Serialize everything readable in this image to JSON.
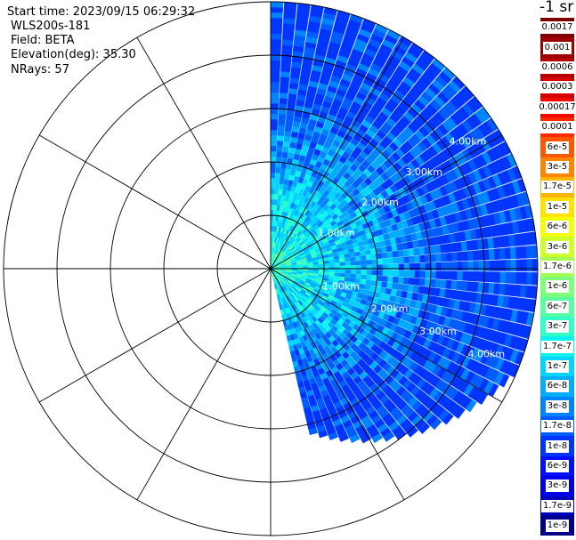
{
  "info": {
    "start_time": "Start time: 2023/09/15 06:29:32",
    "instrument": "WLS200s-181",
    "field": "Field: BETA",
    "elevation": "Elevation(deg): 35.30",
    "nrays": "NRays: 57"
  },
  "chart_data": {
    "type": "heatmap",
    "projection": "polar-ppi",
    "field": "BETA",
    "unit_label": "-1 sr",
    "range_rings_km": [
      1.0,
      2.0,
      3.0,
      4.0
    ],
    "range_ring_labels": [
      "1.00km",
      "2.00km",
      "3.00km",
      "4.00km"
    ],
    "max_range_km": 5.0,
    "spoke_angles_deg": [
      0,
      30,
      60,
      90,
      120,
      150,
      180,
      210,
      240,
      270,
      300,
      330
    ],
    "azimuth_start_deg": 0,
    "azimuth_end_deg": 167,
    "n_rays": 57,
    "ray_max_range_km": [
      5.0,
      5.0,
      5.0,
      5.0,
      5.0,
      5.0,
      5.0,
      5.0,
      5.0,
      5.0,
      5.0,
      5.0,
      5.0,
      5.0,
      5.0,
      5.0,
      5.0,
      5.0,
      5.0,
      5.0,
      5.0,
      5.0,
      5.0,
      5.0,
      5.0,
      5.0,
      5.0,
      5.0,
      5.0,
      5.0,
      5.0,
      5.0,
      5.0,
      5.0,
      5.0,
      5.0,
      5.0,
      5.0,
      5.0,
      4.9,
      4.8,
      4.7,
      4.6,
      4.5,
      4.4,
      4.3,
      4.2,
      4.1,
      4.0,
      3.9,
      3.8,
      3.7,
      3.6,
      3.5,
      3.4,
      3.3,
      3.2
    ],
    "colorbar": [
      {
        "label": "0.0017",
        "color": "#7f0000"
      },
      {
        "label": "0.001",
        "color": "#9c0000"
      },
      {
        "label": "0.0006",
        "color": "#b50000"
      },
      {
        "label": "0.0003",
        "color": "#d60000"
      },
      {
        "label": "0.00017",
        "color": "#f10800"
      },
      {
        "label": "0.0001",
        "color": "#ff2800"
      },
      {
        "label": "6e-5",
        "color": "#ff5600"
      },
      {
        "label": "3e-5",
        "color": "#ff8400"
      },
      {
        "label": "1.7e-5",
        "color": "#ffb600"
      },
      {
        "label": "1e-5",
        "color": "#ffe100"
      },
      {
        "label": "6e-6",
        "color": "#f2ff09"
      },
      {
        "label": "3e-6",
        "color": "#cfff2a"
      },
      {
        "label": "1.7e-6",
        "color": "#a4ff54"
      },
      {
        "label": "1e-6",
        "color": "#7cff7a"
      },
      {
        "label": "6e-7",
        "color": "#57ffa0"
      },
      {
        "label": "3e-7",
        "color": "#30ffc6"
      },
      {
        "label": "1.7e-7",
        "color": "#0cf3ee"
      },
      {
        "label": "1e-7",
        "color": "#00d4ff"
      },
      {
        "label": "6e-8",
        "color": "#00acff"
      },
      {
        "label": "3e-8",
        "color": "#0084ff"
      },
      {
        "label": "1.7e-8",
        "color": "#005cff"
      },
      {
        "label": "1e-8",
        "color": "#0034ff"
      },
      {
        "label": "6e-9",
        "color": "#0010ff"
      },
      {
        "label": "3e-9",
        "color": "#0000e4"
      },
      {
        "label": "1.7e-9",
        "color": "#0000b8"
      },
      {
        "label": "1e-9",
        "color": "#00008b"
      }
    ],
    "typical_value_range": [
      "1e-8",
      "1.7e-6"
    ]
  }
}
